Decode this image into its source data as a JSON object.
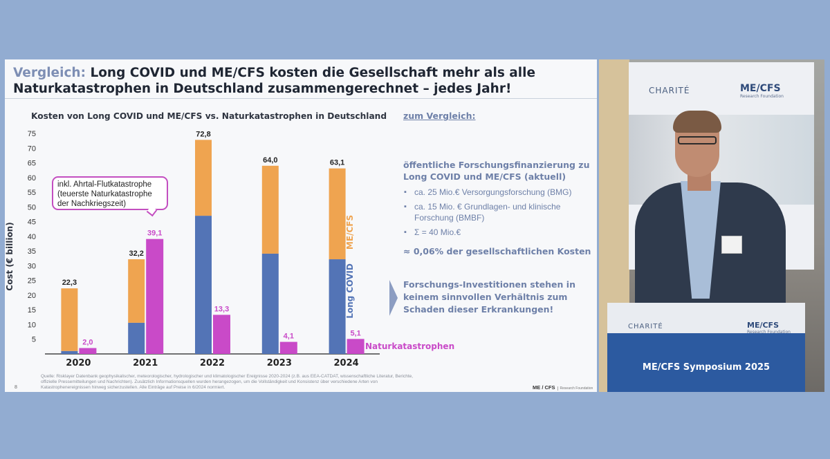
{
  "slide": {
    "headline_keyword": "Vergleich:",
    "headline_line1": "Long COVID  und ME/CFS kosten die Gesellschaft mehr als alle",
    "headline_line2": "Naturkatastrophen in Deutschland zusammengerechnet – jedes Jahr!",
    "callout_lines": [
      "inkl. Ahrtal-Flutkatastrophe",
      "(teuerste Naturkatastrophe",
      "der Nachkriegszeit)"
    ],
    "comparison_title": "zum Vergleich:",
    "funding_heading": "öffentliche Forschungsfinanzierung zu Long COVID und ME/CFS (aktuell)",
    "bullets": [
      "ca. 25 Mio.€ Versorgungsforschung (BMG)",
      "ca. 15 Mio. € Grundlagen- und klinische Forschung (BMBF)",
      "Σ = 40 Mio.€"
    ],
    "share": "≈ 0,06% der gesellschaftlichen Kosten",
    "conclusion": "Forschungs-Investitionen stehen in keinem sinnvollen Verhältnis zum Schaden dieser Erkrankungen!",
    "source": "Quelle: Risklayer Datenbank geophysikalischer, meteorologischer, hydrologischer und klimatologischer Ereignisse 2020-2024 (z.B. aus EEA-CATDAT, wissenschaftliche Literatur, Berichte, offizielle Pressemitteilungen und Nachrichten). Zusätzlich Informationsquellen wurden herangezogen, um die Vollständigkeit und Konsistenz über verschiedene Arten von Katastrophenereignissen hinweg sicherzustellen. Alle Einträge auf Preise in 6/2024 normiert.",
    "page_number": "8",
    "footer_logo": "ME / CFS",
    "footer_logo_sub": "Research Foundation"
  },
  "video": {
    "banner_left": "CHARITÉ",
    "banner_right": "ME/CFS",
    "banner_right_sub": "Research Foundation",
    "podium_left": "CHARITÉ",
    "podium_right": "ME/CFS",
    "podium_right_sub": "Research Foundation",
    "podium_title": "ME/CFS Symposium 2025"
  },
  "chart_data": {
    "type": "bar",
    "title": "Kosten von Long COVID  und ME/CFS vs. Naturkatastrophen in Deutschland",
    "ylabel": "Cost (€ billion)",
    "ylim": [
      0,
      75
    ],
    "yticks": [
      5,
      10,
      15,
      20,
      25,
      30,
      35,
      40,
      45,
      50,
      55,
      60,
      65,
      70,
      75
    ],
    "categories": [
      "2020",
      "2021",
      "2022",
      "2023",
      "2024"
    ],
    "stacked_series": [
      {
        "name": "Long COVID",
        "color": "#5374b6",
        "values": [
          1.0,
          10.6,
          47.0,
          34.1,
          32.2
        ]
      },
      {
        "name": "ME/CFS",
        "color": "#efa450",
        "values": [
          21.3,
          21.6,
          25.8,
          29.9,
          30.9
        ]
      }
    ],
    "stack_totals": [
      "22,3",
      "32,2",
      "72,8",
      "64,0",
      "63,1"
    ],
    "disaster_series": {
      "name": "Naturkatastrophen",
      "color": "#c94ac8",
      "values": [
        2.0,
        39.1,
        13.3,
        4.1,
        5.1
      ],
      "labels": [
        "2,0",
        "39,1",
        "13,3",
        "4,1",
        "5,1"
      ]
    },
    "grid": false
  }
}
